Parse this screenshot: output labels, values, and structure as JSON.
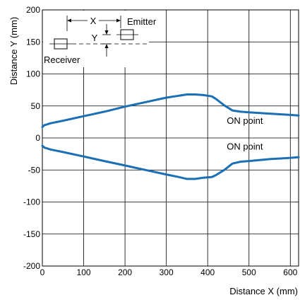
{
  "chart_data": {
    "type": "line",
    "xlabel": "Distance X (mm)",
    "ylabel": "Distance Y (mm)",
    "xlim": [
      0,
      620
    ],
    "ylim": [
      -200,
      200
    ],
    "xticks": [
      0,
      100,
      200,
      300,
      400,
      500,
      600
    ],
    "yticks": [
      200,
      150,
      100,
      50,
      0,
      -50,
      -100,
      -150,
      -200
    ],
    "grid": true,
    "line_color": "#1a6fb5",
    "series": [
      {
        "name": "ON point",
        "x": [
          0,
          5,
          20,
          50,
          100,
          150,
          200,
          250,
          300,
          330,
          350,
          370,
          390,
          410,
          420,
          440,
          460,
          480,
          500,
          550,
          600,
          620
        ],
        "y": [
          17,
          20,
          23,
          27,
          34,
          41,
          49,
          56,
          63,
          66,
          68,
          68,
          67,
          65,
          61,
          51,
          43,
          41,
          40,
          38,
          36,
          35
        ]
      },
      {
        "name": "ON point",
        "x": [
          0,
          5,
          20,
          50,
          100,
          150,
          200,
          250,
          300,
          330,
          350,
          370,
          390,
          410,
          420,
          440,
          460,
          480,
          500,
          550,
          600,
          620
        ],
        "y": [
          -12,
          -15,
          -18,
          -22,
          -29,
          -36,
          -43,
          -50,
          -57,
          -61,
          -64,
          -64,
          -62,
          -61,
          -58,
          -50,
          -40,
          -37,
          -36,
          -33,
          -31,
          -30
        ]
      }
    ],
    "annotations": [
      {
        "text": "ON point",
        "x": 490,
        "y": 22
      },
      {
        "text": "ON point",
        "x": 490,
        "y": -18
      }
    ],
    "inset": {
      "x_label": "X",
      "y_label": "Y",
      "emitter_label": "Emitter",
      "receiver_label": "Receiver"
    }
  }
}
